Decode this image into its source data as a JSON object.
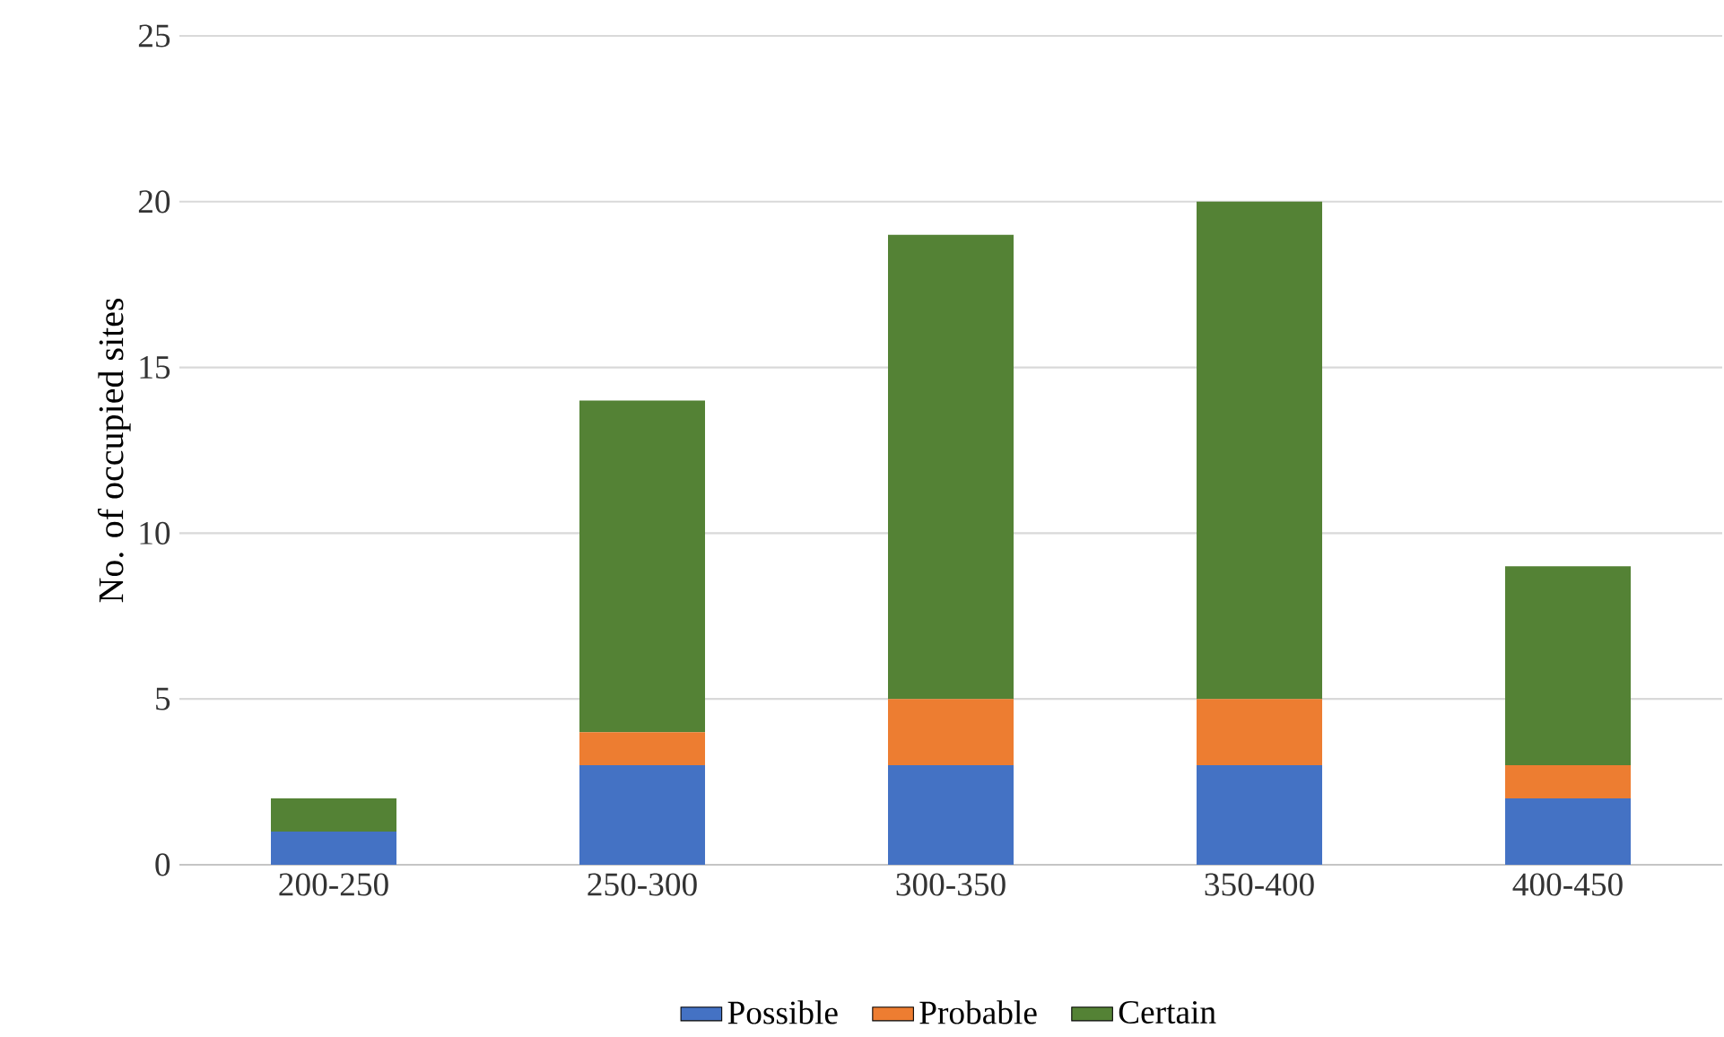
{
  "chart_data": {
    "type": "bar",
    "stacked": true,
    "ylabel": "No. of occupied sites",
    "categories": [
      "200-250",
      "250-300",
      "300-350",
      "350-400",
      "400-450"
    ],
    "series": [
      {
        "name": "Possible",
        "color": "#4472c4",
        "values": [
          1,
          3,
          3,
          3,
          2
        ]
      },
      {
        "name": "Probable",
        "color": "#ed7d31",
        "values": [
          0,
          1,
          2,
          2,
          1
        ]
      },
      {
        "name": "Certain",
        "color": "#548235",
        "values": [
          1,
          10,
          14,
          15,
          6
        ]
      }
    ],
    "ylim": [
      0,
      25
    ],
    "yticks": [
      0,
      5,
      10,
      15,
      20,
      25
    ],
    "grid": "y",
    "legend": "bottom"
  }
}
